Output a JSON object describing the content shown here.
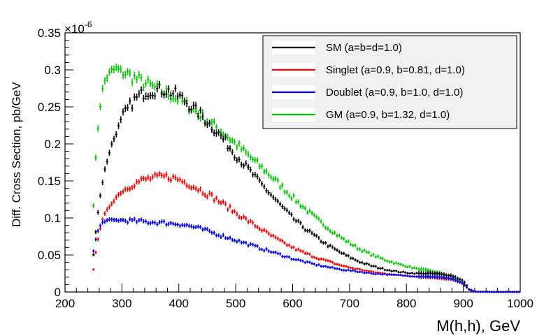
{
  "chart_data": {
    "type": "scatter",
    "title": "",
    "xlabel": "M(h,h), GeV",
    "ylabel": "Diff. Cross Section, pb/GeV",
    "y_multiplier_label": "×10",
    "y_multiplier_exp": "-6",
    "xlim": [
      200,
      1000
    ],
    "ylim": [
      0,
      0.35
    ],
    "x_ticks": [
      "200",
      "300",
      "400",
      "500",
      "600",
      "700",
      "800",
      "900",
      "1000"
    ],
    "y_ticks": [
      "0",
      "0.05",
      "0.1",
      "0.15",
      "0.2",
      "0.25",
      "0.3",
      "0.35"
    ],
    "legend_position": "top-right",
    "series": [
      {
        "name": "SM (a=b=d=1.0)",
        "color": "#000000",
        "x": [
          250,
          255,
          260,
          265,
          270,
          280,
          290,
          300,
          320,
          340,
          360,
          380,
          400,
          420,
          440,
          460,
          480,
          500,
          520,
          540,
          560,
          580,
          600,
          620,
          640,
          660,
          680,
          700,
          720,
          740,
          760,
          780,
          800,
          820,
          840,
          860,
          880,
          900,
          910,
          920,
          940,
          960,
          980,
          1000
        ],
        "y": [
          0.05,
          0.09,
          0.12,
          0.145,
          0.165,
          0.195,
          0.215,
          0.235,
          0.258,
          0.27,
          0.273,
          0.272,
          0.265,
          0.252,
          0.238,
          0.222,
          0.205,
          0.185,
          0.168,
          0.15,
          0.133,
          0.116,
          0.1,
          0.087,
          0.075,
          0.064,
          0.055,
          0.047,
          0.04,
          0.035,
          0.031,
          0.028,
          0.026,
          0.025,
          0.025,
          0.024,
          0.022,
          0.015,
          0.004,
          0.0005,
          0.0002,
          0.0001,
          0.0001,
          0.0001
        ]
      },
      {
        "name": "Singlet (a=0.9, b=0.81, d=1.0)",
        "color": "#ff0000",
        "x": [
          250,
          255,
          260,
          265,
          270,
          280,
          290,
          300,
          320,
          340,
          360,
          380,
          400,
          420,
          440,
          460,
          480,
          500,
          520,
          540,
          560,
          580,
          600,
          620,
          640,
          660,
          680,
          700,
          720,
          740,
          760,
          780,
          800,
          820,
          840,
          860,
          880,
          900,
          910,
          920,
          940,
          960,
          980,
          1000
        ],
        "y": [
          0.03,
          0.06,
          0.08,
          0.095,
          0.105,
          0.118,
          0.128,
          0.136,
          0.146,
          0.152,
          0.155,
          0.156,
          0.152,
          0.145,
          0.137,
          0.128,
          0.118,
          0.107,
          0.097,
          0.087,
          0.077,
          0.068,
          0.06,
          0.053,
          0.047,
          0.042,
          0.037,
          0.033,
          0.03,
          0.027,
          0.025,
          0.023,
          0.022,
          0.021,
          0.02,
          0.019,
          0.017,
          0.011,
          0.003,
          0.0004,
          0.0002,
          0.0001,
          0.0001,
          0.0001
        ]
      },
      {
        "name": "Doublet (a=0.9, b=1.0, d=1.0)",
        "color": "#0000ff",
        "x": [
          250,
          255,
          260,
          265,
          270,
          280,
          290,
          300,
          320,
          340,
          360,
          380,
          400,
          420,
          440,
          460,
          480,
          500,
          520,
          540,
          560,
          580,
          600,
          620,
          640,
          660,
          680,
          700,
          720,
          740,
          760,
          780,
          800,
          820,
          840,
          860,
          880,
          900,
          910,
          920,
          940,
          960,
          980,
          1000
        ],
        "y": [
          0.055,
          0.075,
          0.087,
          0.093,
          0.096,
          0.097,
          0.097,
          0.097,
          0.096,
          0.095,
          0.094,
          0.093,
          0.092,
          0.089,
          0.085,
          0.08,
          0.075,
          0.07,
          0.065,
          0.06,
          0.055,
          0.05,
          0.045,
          0.041,
          0.037,
          0.034,
          0.031,
          0.029,
          0.027,
          0.025,
          0.024,
          0.023,
          0.022,
          0.021,
          0.021,
          0.02,
          0.018,
          0.011,
          0.003,
          0.0004,
          0.0002,
          0.0001,
          0.0001,
          0.0001
        ]
      },
      {
        "name": "GM (a=0.9, b=1.32, d=1.0)",
        "color": "#00cc00",
        "x": [
          250,
          255,
          260,
          265,
          270,
          280,
          290,
          300,
          320,
          340,
          360,
          380,
          400,
          420,
          440,
          460,
          480,
          500,
          520,
          540,
          560,
          580,
          600,
          620,
          640,
          660,
          680,
          700,
          720,
          740,
          760,
          780,
          800,
          820,
          840,
          860,
          880,
          900,
          910,
          920,
          940,
          960,
          980,
          1000
        ],
        "y": [
          0.118,
          0.195,
          0.24,
          0.27,
          0.285,
          0.298,
          0.302,
          0.298,
          0.29,
          0.282,
          0.275,
          0.268,
          0.26,
          0.25,
          0.238,
          0.226,
          0.214,
          0.2,
          0.186,
          0.172,
          0.158,
          0.143,
          0.128,
          0.114,
          0.1,
          0.088,
          0.076,
          0.066,
          0.057,
          0.05,
          0.044,
          0.039,
          0.035,
          0.031,
          0.028,
          0.025,
          0.02,
          0.012,
          0.004,
          0.0006,
          0.0003,
          0.0001,
          0.0001,
          0.0001
        ]
      }
    ]
  }
}
